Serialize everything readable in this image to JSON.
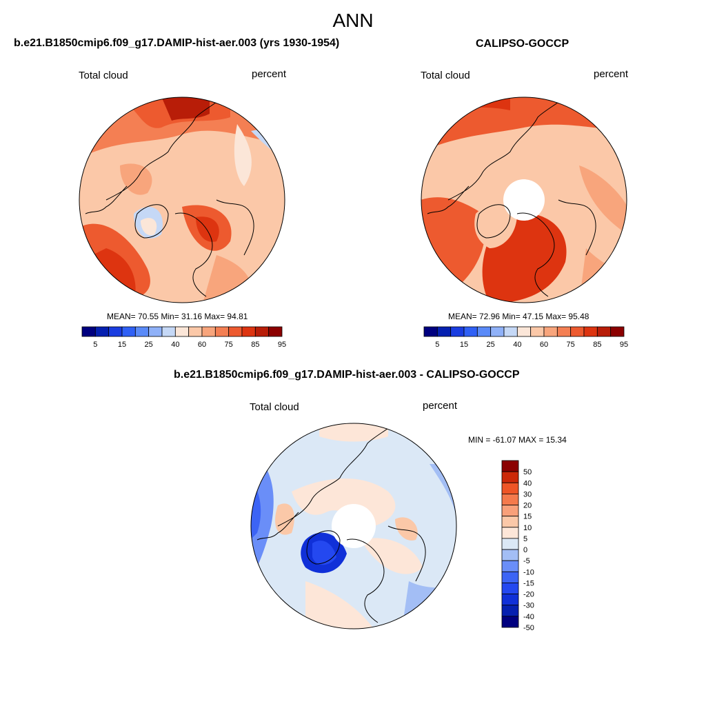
{
  "main_title": "ANN",
  "panels": [
    {
      "title": "b.e21.B1850cmip6.f09_g17.DAMIP-hist-aer.003 (yrs 1930-1954)",
      "left_label": "Total cloud",
      "right_label": "percent",
      "stats": "MEAN=  70.55  Min=  31.16  Max=  94.81"
    },
    {
      "title": "CALIPSO-GOCCP",
      "left_label": "Total cloud",
      "right_label": "percent",
      "stats": "MEAN=  72.96  Min=  47.15  Max=  95.48"
    },
    {
      "title": "b.e21.B1850cmip6.f09_g17.DAMIP-hist-aer.003 - CALIPSO-GOCCP",
      "left_label": "Total cloud",
      "right_label": "percent",
      "stats": "MIN = -61.07 MAX =  15.34"
    }
  ],
  "colorbar_abs": {
    "colors": [
      "#00007f",
      "#0520b0",
      "#1a3de0",
      "#2f60f5",
      "#5a8af8",
      "#8fb1f8",
      "#c5d8f6",
      "#fbe6d8",
      "#fbc8a8",
      "#f8a57c",
      "#f47f53",
      "#ed5a2f",
      "#dd3410",
      "#b81d08",
      "#8b0000"
    ],
    "tick_labels": [
      "5",
      "15",
      "25",
      "40",
      "60",
      "75",
      "85",
      "95"
    ]
  },
  "colorbar_diff": {
    "colors": [
      "#00007f",
      "#0520b0",
      "#1030d8",
      "#2448f0",
      "#3c64f5",
      "#6a8ef8",
      "#a3bef5",
      "#dbe8f6",
      "#fde6d8",
      "#fbc8a8",
      "#f8a07a",
      "#f47a4c",
      "#ee5526",
      "#cc2808",
      "#8b0000"
    ],
    "tick_labels": [
      "50",
      "40",
      "30",
      "20",
      "15",
      "10",
      "5",
      "0",
      "-5",
      "-10",
      "-15",
      "-20",
      "-30",
      "-40",
      "-50"
    ]
  },
  "chart_data": {
    "type": "heatmap",
    "title": "ANN",
    "variable": "Total cloud",
    "units": "percent",
    "projection": "north polar stereographic",
    "maps": [
      {
        "name": "b.e21.B1850cmip6.f09_g17.DAMIP-hist-aer.003 (yrs 1930-1954)",
        "mean": 70.55,
        "min": 31.16,
        "max": 94.81
      },
      {
        "name": "CALIPSO-GOCCP",
        "mean": 72.96,
        "min": 47.15,
        "max": 95.48
      },
      {
        "name": "b.e21.B1850cmip6.f09_g17.DAMIP-hist-aer.003 - CALIPSO-GOCCP",
        "min": -61.07,
        "max": 15.34
      }
    ],
    "colorbar_levels_abs": [
      5,
      15,
      25,
      40,
      60,
      75,
      85,
      95
    ],
    "colorbar_levels_diff": [
      -50,
      -40,
      -30,
      -20,
      -15,
      -10,
      -5,
      0,
      5,
      10,
      15,
      20,
      30,
      40,
      50
    ]
  }
}
